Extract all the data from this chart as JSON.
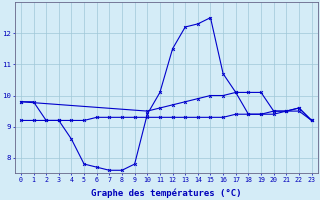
{
  "xlabel": "Graphe des températures (°C)",
  "x": [
    0,
    1,
    2,
    3,
    4,
    5,
    6,
    7,
    8,
    9,
    10,
    11,
    12,
    13,
    14,
    15,
    16,
    17,
    18,
    19,
    20,
    21,
    22,
    23
  ],
  "line1": [
    9.8,
    9.8,
    9.2,
    9.2,
    8.6,
    7.8,
    7.7,
    7.6,
    7.6,
    7.8,
    9.4,
    10.1,
    11.5,
    12.2,
    12.3,
    12.5,
    10.7,
    10.1,
    9.4,
    9.4,
    9.4,
    9.5,
    9.6,
    9.2
  ],
  "line2": [
    9.2,
    9.2,
    9.2,
    9.2,
    9.2,
    9.2,
    9.3,
    9.3,
    9.3,
    9.3,
    9.3,
    9.3,
    9.3,
    9.3,
    9.3,
    9.3,
    9.3,
    9.4,
    9.4,
    9.4,
    9.5,
    9.5,
    9.6,
    9.2
  ],
  "line3": [
    9.8,
    null,
    null,
    null,
    null,
    null,
    null,
    null,
    null,
    null,
    9.5,
    9.6,
    9.7,
    9.8,
    9.9,
    10.0,
    10.0,
    10.1,
    10.1,
    10.1,
    9.5,
    9.5,
    9.5,
    9.2
  ],
  "ylim": [
    7.5,
    13.0
  ],
  "xlim": [
    -0.5,
    23.5
  ],
  "yticks": [
    8,
    9,
    10,
    11,
    12
  ],
  "xticks": [
    0,
    1,
    2,
    3,
    4,
    5,
    6,
    7,
    8,
    9,
    10,
    11,
    12,
    13,
    14,
    15,
    16,
    17,
    18,
    19,
    20,
    21,
    22,
    23
  ],
  "line_color": "#0000cc",
  "bg_color": "#d4ecf7",
  "grid_color": "#a0c8d8",
  "axis_color": "#666688",
  "label_color": "#0000bb",
  "tick_fontsize": 4.8,
  "xlabel_fontsize": 6.5
}
